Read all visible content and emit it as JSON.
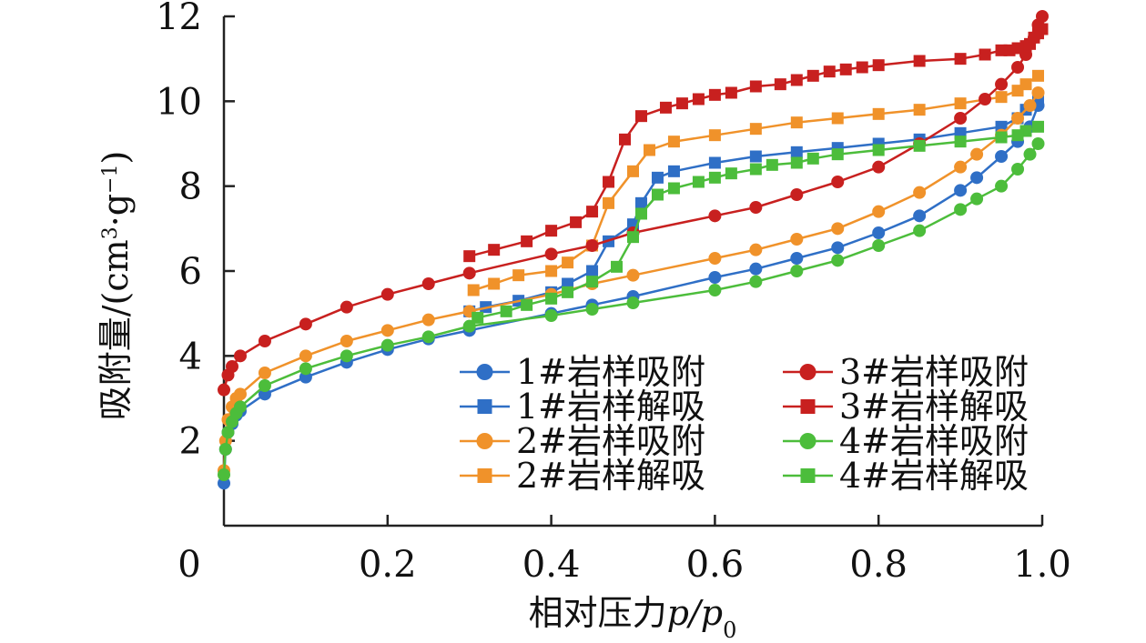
{
  "chart_data": {
    "type": "line",
    "xlabel": "相对压力p/p0",
    "xlabel_parts": {
      "main": "相对压力",
      "var": "p/p",
      "sub": "0"
    },
    "ylabel": "吸附量/(cm3·g-1)",
    "ylabel_parts": {
      "main": "吸附量/(cm",
      "sup1": "3",
      "mid": "·g",
      "sup2": "−1",
      "end": ")"
    },
    "xlim": [
      0,
      1.0
    ],
    "ylim": [
      0,
      12
    ],
    "x_ticks": [
      0,
      0.2,
      0.4,
      0.6,
      0.8,
      1.0
    ],
    "x_tick_labels": [
      "0",
      "0.2",
      "0.4",
      "0.6",
      "0.8",
      "1.0"
    ],
    "y_ticks": [
      2,
      4,
      6,
      8,
      10,
      12
    ],
    "y_tick_labels": [
      "2",
      "4",
      "6",
      "8",
      "10",
      "12"
    ],
    "grid": false,
    "legend_position": "lower-right",
    "series": [
      {
        "name": "1#岩样吸附",
        "color": "#2f6fc6",
        "marker": "circle",
        "x": [
          0.0,
          0.002,
          0.005,
          0.01,
          0.015,
          0.02,
          0.05,
          0.1,
          0.15,
          0.2,
          0.25,
          0.3,
          0.4,
          0.45,
          0.5,
          0.6,
          0.65,
          0.7,
          0.75,
          0.8,
          0.85,
          0.9,
          0.92,
          0.95,
          0.97,
          0.985,
          0.995
        ],
        "y": [
          1.0,
          1.8,
          2.2,
          2.4,
          2.6,
          2.7,
          3.1,
          3.5,
          3.85,
          4.15,
          4.4,
          4.6,
          5.0,
          5.2,
          5.4,
          5.85,
          6.05,
          6.3,
          6.55,
          6.9,
          7.3,
          7.9,
          8.2,
          8.7,
          9.05,
          9.4,
          9.9
        ]
      },
      {
        "name": "1#岩样解吸",
        "color": "#2f6fc6",
        "marker": "square",
        "x": [
          0.995,
          0.98,
          0.97,
          0.95,
          0.9,
          0.85,
          0.8,
          0.75,
          0.7,
          0.65,
          0.6,
          0.55,
          0.53,
          0.51,
          0.5,
          0.47,
          0.45,
          0.42,
          0.4,
          0.36,
          0.32,
          0.3
        ],
        "y": [
          10.0,
          9.8,
          9.6,
          9.4,
          9.25,
          9.1,
          9.0,
          8.9,
          8.8,
          8.7,
          8.55,
          8.35,
          8.2,
          7.6,
          7.1,
          6.7,
          6.0,
          5.7,
          5.5,
          5.3,
          5.15,
          5.05
        ]
      },
      {
        "name": "2#岩样吸附",
        "color": "#f0922a",
        "marker": "circle",
        "x": [
          0.0,
          0.002,
          0.005,
          0.01,
          0.015,
          0.02,
          0.05,
          0.1,
          0.15,
          0.2,
          0.25,
          0.3,
          0.4,
          0.45,
          0.5,
          0.6,
          0.65,
          0.7,
          0.75,
          0.8,
          0.85,
          0.9,
          0.92,
          0.95,
          0.97,
          0.985,
          0.995
        ],
        "y": [
          1.3,
          2.0,
          2.5,
          2.8,
          3.0,
          3.1,
          3.6,
          4.0,
          4.35,
          4.6,
          4.85,
          5.05,
          5.45,
          5.7,
          5.9,
          6.3,
          6.5,
          6.75,
          7.0,
          7.4,
          7.85,
          8.45,
          8.75,
          9.2,
          9.6,
          9.9,
          10.2
        ]
      },
      {
        "name": "2#岩样解吸",
        "color": "#f0922a",
        "marker": "square",
        "x": [
          0.995,
          0.98,
          0.97,
          0.95,
          0.9,
          0.85,
          0.8,
          0.75,
          0.7,
          0.65,
          0.6,
          0.55,
          0.52,
          0.5,
          0.47,
          0.45,
          0.42,
          0.4,
          0.36,
          0.33,
          0.305
        ],
        "y": [
          10.6,
          10.4,
          10.25,
          10.1,
          9.95,
          9.8,
          9.7,
          9.6,
          9.5,
          9.35,
          9.2,
          9.05,
          8.85,
          8.35,
          7.6,
          6.6,
          6.2,
          6.0,
          5.9,
          5.7,
          5.55
        ]
      },
      {
        "name": "3#岩样吸附",
        "color": "#c8201f",
        "marker": "circle",
        "x": [
          0.0,
          0.005,
          0.01,
          0.02,
          0.05,
          0.1,
          0.15,
          0.2,
          0.25,
          0.3,
          0.4,
          0.45,
          0.5,
          0.6,
          0.65,
          0.7,
          0.75,
          0.8,
          0.85,
          0.9,
          0.93,
          0.95,
          0.97,
          0.98,
          0.99,
          0.995,
          1.0
        ],
        "y": [
          3.2,
          3.55,
          3.75,
          4.0,
          4.35,
          4.75,
          5.15,
          5.45,
          5.7,
          5.95,
          6.4,
          6.6,
          6.9,
          7.3,
          7.5,
          7.8,
          8.1,
          8.45,
          9.0,
          9.6,
          10.05,
          10.4,
          10.8,
          11.1,
          11.5,
          11.8,
          12.0
        ]
      },
      {
        "name": "3#岩样解吸",
        "color": "#c8201f",
        "marker": "square",
        "x": [
          1.0,
          0.995,
          0.99,
          0.985,
          0.98,
          0.97,
          0.96,
          0.95,
          0.93,
          0.9,
          0.85,
          0.8,
          0.78,
          0.76,
          0.74,
          0.72,
          0.7,
          0.68,
          0.65,
          0.62,
          0.6,
          0.58,
          0.56,
          0.54,
          0.51,
          0.49,
          0.47,
          0.45,
          0.43,
          0.4,
          0.37,
          0.33,
          0.3
        ],
        "y": [
          11.7,
          11.6,
          11.5,
          11.35,
          11.3,
          11.25,
          11.2,
          11.2,
          11.1,
          11.0,
          10.95,
          10.85,
          10.8,
          10.75,
          10.7,
          10.6,
          10.5,
          10.4,
          10.35,
          10.2,
          10.15,
          10.05,
          9.95,
          9.85,
          9.65,
          9.1,
          8.1,
          7.4,
          7.15,
          6.95,
          6.7,
          6.5,
          6.35
        ]
      },
      {
        "name": "4#岩样吸附",
        "color": "#4cbd3b",
        "marker": "circle",
        "x": [
          0.0,
          0.002,
          0.005,
          0.01,
          0.015,
          0.02,
          0.05,
          0.1,
          0.15,
          0.2,
          0.25,
          0.3,
          0.4,
          0.45,
          0.5,
          0.6,
          0.65,
          0.7,
          0.75,
          0.8,
          0.85,
          0.9,
          0.92,
          0.95,
          0.97,
          0.985,
          0.995
        ],
        "y": [
          1.2,
          1.8,
          2.2,
          2.45,
          2.65,
          2.8,
          3.3,
          3.7,
          4.0,
          4.25,
          4.45,
          4.7,
          4.95,
          5.1,
          5.25,
          5.55,
          5.75,
          6.0,
          6.25,
          6.6,
          6.95,
          7.45,
          7.7,
          8.0,
          8.4,
          8.75,
          9.0
        ]
      },
      {
        "name": "4#岩样解吸",
        "color": "#4cbd3b",
        "marker": "square",
        "x": [
          0.995,
          0.98,
          0.97,
          0.95,
          0.9,
          0.85,
          0.8,
          0.75,
          0.72,
          0.7,
          0.67,
          0.65,
          0.62,
          0.6,
          0.58,
          0.55,
          0.53,
          0.51,
          0.5,
          0.48,
          0.45,
          0.42,
          0.4,
          0.37,
          0.345,
          0.31
        ],
        "y": [
          9.4,
          9.3,
          9.2,
          9.15,
          9.05,
          8.95,
          8.85,
          8.75,
          8.65,
          8.55,
          8.5,
          8.4,
          8.3,
          8.2,
          8.1,
          7.95,
          7.8,
          7.35,
          6.8,
          6.1,
          5.75,
          5.5,
          5.35,
          5.2,
          5.05,
          4.9
        ]
      }
    ]
  }
}
